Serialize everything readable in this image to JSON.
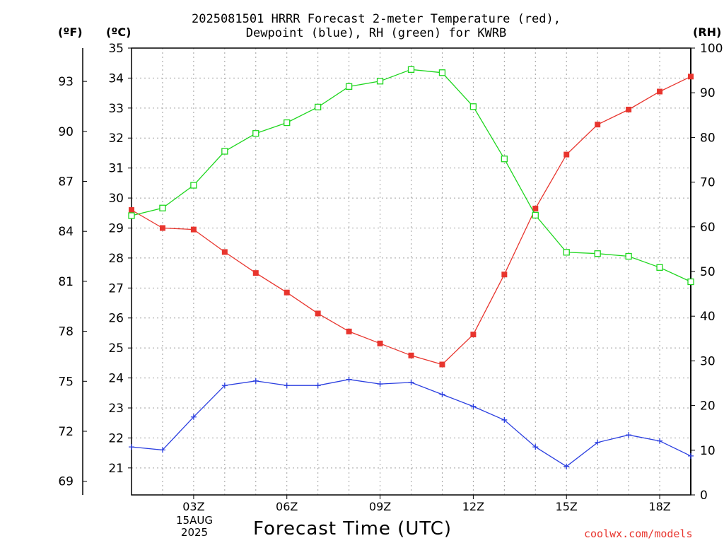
{
  "header": {
    "title_line1": "2025081501 HRRR Forecast 2-meter Temperature (red),",
    "title_line2": "Dewpoint (blue), RH (green) for KWRB"
  },
  "units": {
    "left_f": "(ºF)",
    "left_c": "(ºC)",
    "right_rh": "(RH)"
  },
  "footer": {
    "xlabel": "Forecast Time (UTC)",
    "date_line1": "15AUG",
    "date_line2": "2025",
    "credit": "coolwx.com/models"
  },
  "colors": {
    "temperature": "#e8352e",
    "dewpoint": "#2b3fe0",
    "rh": "#1ed61e",
    "grid": "#a0a0a0"
  },
  "chart_data": {
    "type": "line",
    "title": "2025081501 HRRR Forecast 2-meter Temperature (red), Dewpoint (blue), RH (green) for KWRB",
    "xlabel": "Forecast Time (UTC)",
    "x": [
      1,
      2,
      3,
      4,
      5,
      6,
      7,
      8,
      9,
      10,
      11,
      12,
      13,
      14,
      15,
      16,
      17,
      18,
      19
    ],
    "x_ticks": [
      3,
      6,
      9,
      12,
      15,
      18
    ],
    "x_tick_labels": [
      "03Z",
      "06Z",
      "09Z",
      "12Z",
      "15Z",
      "18Z"
    ],
    "xlim": [
      1,
      19
    ],
    "ylim_celsius": [
      20.1,
      35
    ],
    "y_ticks_celsius": [
      21,
      22,
      23,
      24,
      25,
      26,
      27,
      28,
      29,
      30,
      31,
      32,
      33,
      34,
      35
    ],
    "y_ticks_fahrenheit": [
      69,
      72,
      75,
      78,
      81,
      84,
      87,
      90,
      93
    ],
    "ylim_rh": [
      0,
      100
    ],
    "y_ticks_rh": [
      0,
      10,
      20,
      30,
      40,
      50,
      60,
      70,
      80,
      90,
      100
    ],
    "grid": true,
    "series": [
      {
        "name": "Temperature",
        "axis": "celsius",
        "marker": "filled-square",
        "values": [
          29.6,
          29.0,
          28.95,
          28.2,
          27.5,
          26.85,
          26.15,
          25.55,
          25.15,
          24.75,
          24.45,
          25.45,
          27.45,
          29.65,
          31.45,
          32.45,
          32.95,
          33.55,
          34.05
        ]
      },
      {
        "name": "Dewpoint",
        "axis": "celsius",
        "marker": "plus",
        "values": [
          21.7,
          21.6,
          22.7,
          23.75,
          23.9,
          23.75,
          23.75,
          23.95,
          23.8,
          23.85,
          23.45,
          23.05,
          22.6,
          21.7,
          21.05,
          21.85,
          22.1,
          21.9,
          21.4
        ]
      },
      {
        "name": "RH",
        "axis": "rh",
        "marker": "open-square",
        "values": [
          62.5,
          64.2,
          69.3,
          76.9,
          80.9,
          83.3,
          86.8,
          91.4,
          92.6,
          95.2,
          94.5,
          86.9,
          75.2,
          62.6,
          54.3,
          54.0,
          53.4,
          50.9,
          47.7
        ]
      }
    ]
  }
}
